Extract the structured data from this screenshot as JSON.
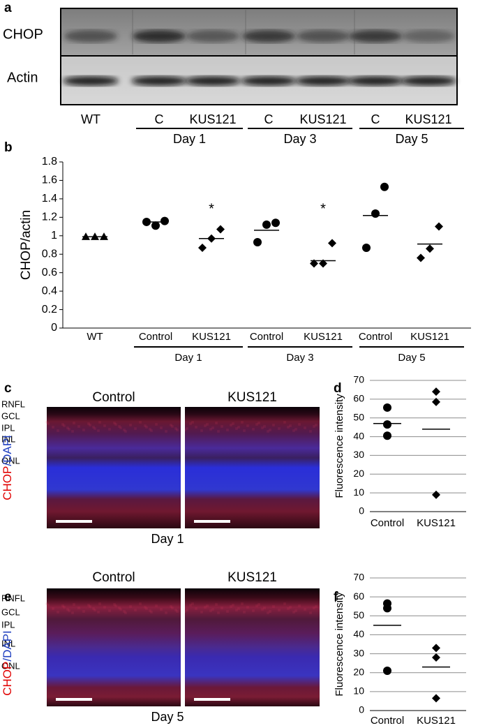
{
  "blot": {
    "panel": "a",
    "rows": [
      "CHOP",
      "Actin"
    ],
    "lanes": [
      "WT",
      "C",
      "KUS121",
      "C",
      "KUS121",
      "C",
      "KUS121"
    ],
    "groups": [
      "Day 1",
      "Day 3",
      "Day 5"
    ]
  },
  "chart_data": [
    {
      "panel": "b",
      "type": "dot",
      "ylabel": "CHOP/actin",
      "categories": [
        "WT",
        "Control",
        "KUS121",
        "Control",
        "KUS121",
        "Control",
        "KUS121"
      ],
      "groups": [
        "Day 1",
        "Day 3",
        "Day 5"
      ],
      "markers": [
        "triangle",
        "circle",
        "diamond",
        "circle",
        "diamond",
        "circle",
        "diamond"
      ],
      "values": [
        [
          0.99,
          0.99,
          0.99
        ],
        [
          1.15,
          1.11,
          1.16
        ],
        [
          0.87,
          0.97,
          1.07
        ],
        [
          0.93,
          1.12,
          1.14
        ],
        [
          0.7,
          0.7,
          0.92
        ],
        [
          0.87,
          1.24,
          1.53
        ],
        [
          0.76,
          0.86,
          1.1
        ]
      ],
      "means": [
        0.99,
        1.15,
        0.97,
        1.06,
        0.73,
        1.22,
        0.91
      ],
      "annotations": [
        null,
        null,
        "*",
        null,
        "*",
        null,
        null
      ],
      "ylim": [
        0,
        1.8
      ],
      "yticks": [
        0,
        0.2,
        0.4,
        0.6,
        0.8,
        1,
        1.2,
        1.4,
        1.6,
        1.8
      ],
      "color": "#000000",
      "grid": false
    },
    {
      "panel": "d",
      "type": "dot",
      "ylabel": "Fluorescence intensity",
      "categories": [
        "Control",
        "KUS121"
      ],
      "markers": [
        "circle",
        "diamond"
      ],
      "values": [
        [
          55.5,
          46.5,
          40.5
        ],
        [
          64,
          58.5,
          9
        ]
      ],
      "means": [
        47,
        44
      ],
      "ylim": [
        0,
        70
      ],
      "yticks": [
        0,
        10,
        20,
        30,
        40,
        50,
        60,
        70
      ],
      "color": "#000000",
      "grid": true
    },
    {
      "panel": "f",
      "type": "dot",
      "ylabel": "Fluorescence intensity",
      "categories": [
        "Control",
        "KUS121"
      ],
      "markers": [
        "circle",
        "diamond"
      ],
      "values": [
        [
          54,
          56.5,
          21
        ],
        [
          33,
          28,
          6.5
        ]
      ],
      "means": [
        45,
        23
      ],
      "ylim": [
        0,
        70
      ],
      "yticks": [
        0,
        10,
        20,
        30,
        40,
        50,
        60,
        70
      ],
      "color": "#000000",
      "grid": true
    }
  ],
  "images": [
    {
      "panel": "c",
      "titles": [
        "Control",
        "KUS121"
      ],
      "layers": [
        "RNFL",
        "GCL",
        "IPL",
        "INL",
        "ONL"
      ],
      "stain": [
        "CHOP",
        "/DAPI"
      ],
      "day": "Day 1"
    },
    {
      "panel": "e",
      "titles": [
        "Control",
        "KUS121"
      ],
      "layers": [
        "RNFL",
        "GCL",
        "IPL",
        "INL",
        "ONL"
      ],
      "stain": [
        "CHOP",
        "/DAPI"
      ],
      "day": "Day 5"
    }
  ]
}
